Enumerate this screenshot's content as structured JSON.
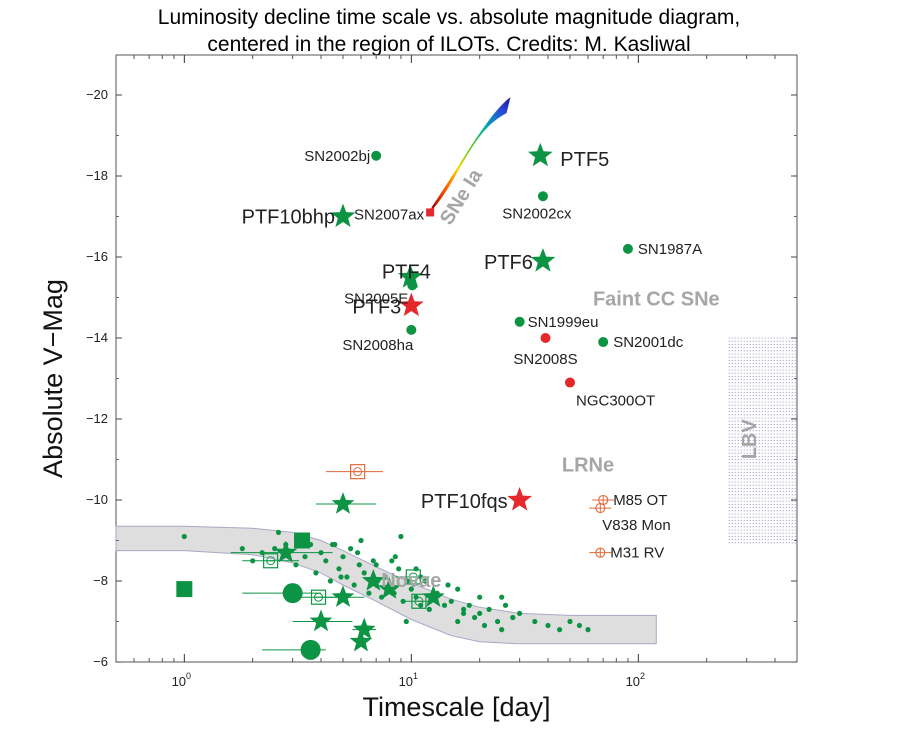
{
  "title": {
    "line1": "Luminosity decline time scale vs. absolute magnitude diagram,",
    "line2": "centered in the region of ILOTs. Credits: M. Kasliwal"
  },
  "colors": {
    "green": "#0c9444",
    "red": "#e4282b",
    "lrne": "#e06a3a",
    "region_text": "#a6a6a6",
    "band": "#dedede",
    "lbv": "#8a8fc0"
  },
  "chart_data": {
    "type": "scatter",
    "title": "Luminosity decline time scale vs. absolute magnitude diagram, centered in the region of ILOTs. Credits: M. Kasliwal",
    "xlabel": "Timescale [day]",
    "ylabel": "Absolute V−Mag",
    "x_scale": "log",
    "xlim": [
      0.5,
      500
    ],
    "ylim": [
      -6,
      -21
    ],
    "y_inverted": true,
    "grid": false,
    "x_ticks": [
      {
        "value": 1,
        "base": "10",
        "exp": "0"
      },
      {
        "value": 10,
        "base": "10",
        "exp": "1"
      },
      {
        "value": 100,
        "base": "10",
        "exp": "2"
      }
    ],
    "y_ticks": [
      {
        "value": -20,
        "label": "−20"
      },
      {
        "value": -18,
        "label": "−18"
      },
      {
        "value": -16,
        "label": "−16"
      },
      {
        "value": -14,
        "label": "−14"
      },
      {
        "value": -12,
        "label": "−12"
      },
      {
        "value": -10,
        "label": "−10"
      },
      {
        "value": -8,
        "label": "−8"
      },
      {
        "value": -6,
        "label": "−6"
      }
    ],
    "region_labels": [
      {
        "text": "SNe Ia",
        "x": 17.5,
        "y": -17.4,
        "rotate": -58
      },
      {
        "text": "Faint CC SNe",
        "x": 120,
        "y": -14.8,
        "anchor": "middle"
      },
      {
        "text": "LRNe",
        "x": 60,
        "y": -10.7,
        "anchor": "middle"
      },
      {
        "text": "LBV",
        "x": 500,
        "y": -11.3,
        "rotate": -90
      },
      {
        "text": "Novae",
        "x": 10.0,
        "y": -7.85,
        "anchor": "middle"
      }
    ],
    "labeled_points": [
      {
        "name": "SN2002bj",
        "x": 7.0,
        "y": -18.5,
        "marker": "dot",
        "color": "green",
        "label_dx": -6,
        "label_dy": 5,
        "label_anchor": "end",
        "label_size": "s"
      },
      {
        "name": "PTF5",
        "x": 37,
        "y": -18.5,
        "marker": "star",
        "color": "green",
        "label_dx": 20,
        "label_dy": 10,
        "label_anchor": "start",
        "label_size": "l"
      },
      {
        "name": "SN2002cx",
        "x": 38,
        "y": -17.5,
        "marker": "dot",
        "color": "green",
        "label_dx": -6,
        "label_dy": 22,
        "label_anchor": "middle",
        "label_size": "s"
      },
      {
        "name": "PTF10bhp",
        "x": 5.0,
        "y": -17.0,
        "marker": "star",
        "color": "green",
        "label_dx": -8,
        "label_dy": 7,
        "label_anchor": "end",
        "label_size": "l"
      },
      {
        "name": "SN2007ax",
        "x": 12.1,
        "y": -17.1,
        "marker": "square_small",
        "color": "red",
        "label_dx": -6,
        "label_dy": 7,
        "label_anchor": "end",
        "label_size": "s"
      },
      {
        "name": "SN1987A",
        "x": 90,
        "y": -16.2,
        "marker": "dot",
        "color": "green",
        "label_dx": 10,
        "label_dy": 5,
        "label_anchor": "start",
        "label_size": "s"
      },
      {
        "name": "PTF6",
        "x": 38,
        "y": -15.9,
        "marker": "star",
        "color": "green",
        "label_dx": -10,
        "label_dy": 8,
        "label_anchor": "end",
        "label_size": "l"
      },
      {
        "name": "PTF4",
        "x": 9.9,
        "y": -15.5,
        "marker": "star",
        "color": "green",
        "label_dx": -4,
        "label_dy": 1,
        "label_anchor": "middle",
        "label_size": "l"
      },
      {
        "name": "SN2005E",
        "x": 10.1,
        "y": -15.3,
        "marker": "dot",
        "color": "green",
        "label_dx": -4,
        "label_dy": 18,
        "label_anchor": "end",
        "label_size": "s"
      },
      {
        "name": "PTF3",
        "x": 10.0,
        "y": -14.8,
        "marker": "star",
        "color": "red",
        "label_dx": -10,
        "label_dy": 8,
        "label_anchor": "end",
        "label_size": "l"
      },
      {
        "name": "SN2008ha",
        "x": 10.0,
        "y": -14.2,
        "marker": "dot",
        "color": "green",
        "label_dx": 2,
        "label_dy": 20,
        "label_anchor": "end",
        "label_size": "s"
      },
      {
        "name": "SN1999eu",
        "x": 30,
        "y": -14.4,
        "marker": "dot",
        "color": "green",
        "label_dx": 8,
        "label_dy": 5,
        "label_anchor": "start",
        "label_size": "s"
      },
      {
        "name": "SN2008S",
        "x": 39,
        "y": -14.0,
        "marker": "dot",
        "color": "red",
        "label_dx": 0,
        "label_dy": 26,
        "label_anchor": "middle",
        "label_size": "s"
      },
      {
        "name": "SN2001dc",
        "x": 70,
        "y": -13.9,
        "marker": "dot",
        "color": "green",
        "label_dx": 10,
        "label_dy": 5,
        "label_anchor": "start",
        "label_size": "s"
      },
      {
        "name": "NGC300OT",
        "x": 50,
        "y": -12.9,
        "marker": "dot",
        "color": "red",
        "label_dx": 6,
        "label_dy": 23,
        "label_anchor": "start",
        "label_size": "s"
      },
      {
        "name": "PTF10fqs",
        "x": 30,
        "y": -10.0,
        "marker": "star",
        "color": "red",
        "label_dx": -12,
        "label_dy": 8,
        "label_anchor": "end",
        "label_size": "l"
      },
      {
        "name": "M85 OT",
        "x": 70,
        "y": -10.0,
        "marker": "circle_err",
        "color": "lrne",
        "label_dx": 10,
        "label_dy": 5,
        "label_anchor": "start",
        "label_size": "s"
      },
      {
        "name": "V838 Mon",
        "x": 68,
        "y": -9.8,
        "marker": "circle_err",
        "color": "lrne",
        "label_dx": 2,
        "label_dy": 22,
        "label_anchor": "start",
        "label_size": "s"
      },
      {
        "name": "M31 RV",
        "x": 68,
        "y": -8.7,
        "marker": "circle_err",
        "color": "lrne",
        "label_dx": 10,
        "label_dy": 5,
        "label_anchor": "start",
        "label_size": "s"
      }
    ],
    "sn_ia_band": {
      "start": {
        "x": 12.1,
        "y": -17.15
      },
      "end": {
        "x": 26.8,
        "y": -19.8
      },
      "colors": [
        "#a00000",
        "#ff5a00",
        "#ffd800",
        "#42c100",
        "#00aeb8",
        "#2a45d8",
        "#1a0055"
      ]
    },
    "novae_band": {
      "x": [
        0.5,
        1,
        2,
        3,
        4,
        5,
        7,
        10,
        15,
        20,
        30,
        50,
        80,
        120
      ],
      "y_upper": [
        -9.35,
        -9.35,
        -9.3,
        -9.2,
        -9.0,
        -8.75,
        -8.35,
        -7.95,
        -7.55,
        -7.35,
        -7.2,
        -7.15,
        -7.15,
        -7.15
      ],
      "y_lower": [
        -8.75,
        -8.75,
        -8.65,
        -8.45,
        -8.2,
        -7.9,
        -7.5,
        -7.05,
        -6.65,
        -6.5,
        -6.45,
        -6.45,
        -6.45,
        -6.45
      ]
    },
    "novae_stars": [
      {
        "x": 2.8,
        "y": -8.7,
        "err_lo": 1.6,
        "err_hi": 4.5
      },
      {
        "x": 5.0,
        "y": -9.9,
        "err_lo": 3.8,
        "err_hi": 7.0
      },
      {
        "x": 5.0,
        "y": -7.6,
        "err_lo": 4.0,
        "err_hi": 6.2
      },
      {
        "x": 4.0,
        "y": -7.0,
        "err_lo": 3.0,
        "err_hi": 5.5
      },
      {
        "x": 6.2,
        "y": -6.8,
        "err_lo": 5.5,
        "err_hi": 7.0
      },
      {
        "x": 6.0,
        "y": -6.5
      },
      {
        "x": 6.8,
        "y": -8.0
      },
      {
        "x": 8.0,
        "y": -7.8
      },
      {
        "x": 12.5,
        "y": -7.6
      }
    ],
    "novae_big_dots": [
      {
        "x": 3.0,
        "y": -7.7,
        "err_lo": 1.8,
        "err_hi": 4.0
      },
      {
        "x": 3.6,
        "y": -6.3,
        "err_lo": 2.2,
        "err_hi": 4.2
      }
    ],
    "novae_squares": [
      {
        "x": 1.0,
        "y": -7.8
      },
      {
        "x": 3.3,
        "y": -9.0
      }
    ],
    "open_squares": [
      {
        "x": 5.8,
        "y": -10.7,
        "color": "lrne",
        "err_lo": 4.2,
        "err_hi": 7.5
      },
      {
        "x": 2.4,
        "y": -8.5,
        "color": "green",
        "err_lo": 1.8,
        "err_hi": 3.2
      },
      {
        "x": 3.9,
        "y": -7.6,
        "color": "green",
        "err_lo": 3.2,
        "err_hi": 4.8
      },
      {
        "x": 10.2,
        "y": -8.1,
        "color": "green",
        "err_lo": 8.5,
        "err_hi": 12.0
      },
      {
        "x": 10.8,
        "y": -7.5,
        "color": "green",
        "err_lo": 9.0,
        "err_hi": 12.5
      }
    ],
    "novae_small_dots": {
      "x": [
        1.0,
        1.8,
        2.2,
        2.5,
        2.8,
        3.1,
        3.4,
        3.6,
        3.8,
        4.0,
        4.2,
        4.4,
        4.6,
        4.8,
        5.0,
        5.2,
        5.4,
        5.6,
        5.9,
        6.2,
        6.5,
        6.8,
        7.1,
        7.4,
        7.7,
        8.0,
        8.4,
        8.8,
        9.2,
        9.6,
        10.0,
        10.5,
        11.0,
        11.5,
        12.0,
        13.0,
        14.0,
        15.0,
        16.0,
        17.0,
        18.0,
        19.0,
        20.0,
        21.0,
        22.0,
        24.0,
        25.0,
        26.0,
        28.0,
        30.0,
        35.0,
        40.0,
        45.0,
        50.0,
        55.0,
        60.0,
        2.0,
        4.5,
        5.8,
        7.0,
        8.2,
        9.0,
        10.5,
        12.5,
        14.5,
        17.0,
        20.0,
        25.0,
        3.2,
        6.0,
        8.5,
        11.0,
        16.0,
        2.6,
        4.9,
        9.5
      ],
      "y": [
        -9.1,
        -8.8,
        -8.7,
        -8.8,
        -8.9,
        -8.4,
        -8.6,
        -8.9,
        -8.2,
        -8.7,
        -8.5,
        -8.0,
        -8.9,
        -8.3,
        -8.6,
        -8.1,
        -8.8,
        -7.9,
        -8.4,
        -8.2,
        -7.7,
        -8.5,
        -8.0,
        -7.6,
        -8.1,
        -7.9,
        -7.7,
        -8.3,
        -7.5,
        -8.0,
        -7.8,
        -7.6,
        -7.4,
        -8.0,
        -7.3,
        -7.7,
        -7.4,
        -7.5,
        -7.0,
        -7.2,
        -7.4,
        -7.1,
        -7.2,
        -6.9,
        -7.3,
        -7.0,
        -6.8,
        -7.4,
        -7.1,
        -7.2,
        -7.0,
        -6.9,
        -6.8,
        -7.0,
        -6.9,
        -6.8,
        -8.5,
        -8.9,
        -8.7,
        -8.4,
        -8.5,
        -9.1,
        -8.3,
        -7.7,
        -7.9,
        -7.3,
        -7.6,
        -7.6,
        -9.0,
        -9.0,
        -8.6,
        -8.1,
        -7.8,
        -9.2,
        -8.1,
        -7.0
      ]
    },
    "lbv_region": {
      "x0": 250,
      "x1": 500,
      "y_top": -14.0,
      "y_bottom": -8.9
    }
  }
}
